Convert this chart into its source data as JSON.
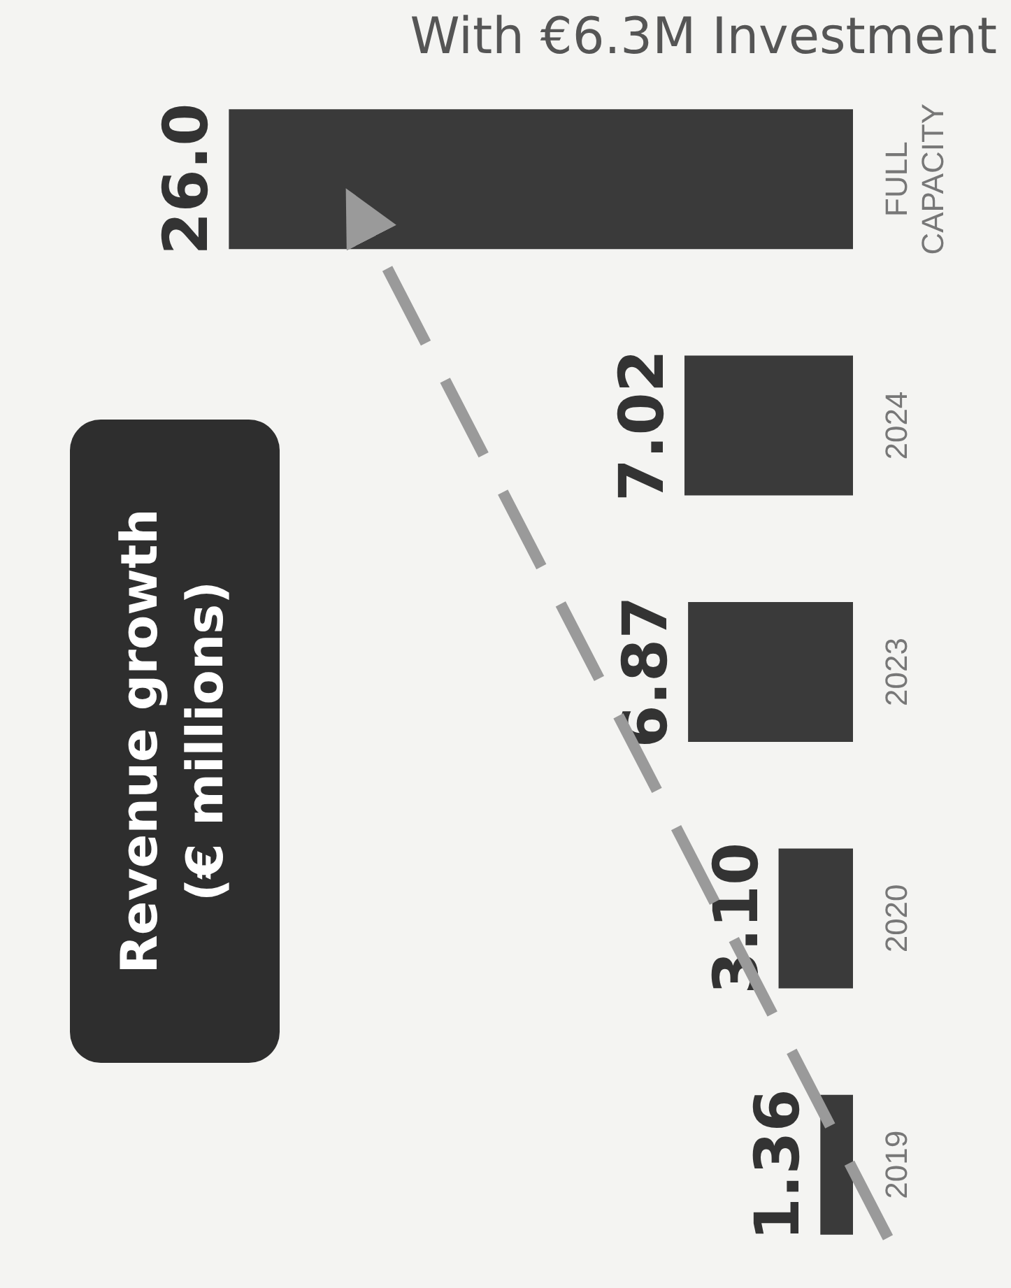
{
  "chart_data": {
    "type": "bar",
    "title": "Revenue growth\n(€ millions)",
    "subtitle": "With €6.3M Investment",
    "orientation": "horizontal",
    "categories": [
      "FULL\nCAPACITY",
      "2024",
      "2023",
      "2020",
      "2019"
    ],
    "values": [
      26.0,
      7.02,
      6.87,
      3.1,
      1.36
    ],
    "value_labels": [
      "26.0",
      "7.02",
      "6.87",
      "3.10",
      "1.36"
    ],
    "color": "#3a3a3a"
  }
}
